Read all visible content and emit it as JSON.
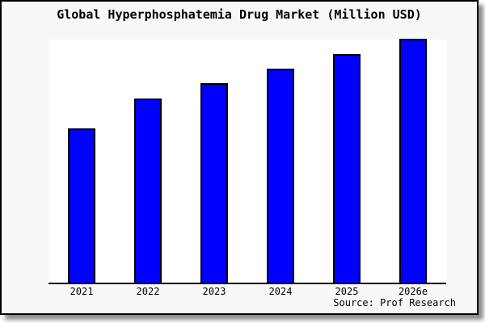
{
  "frame": {
    "background": "#f8f8f8",
    "border_color": "#000000",
    "plot_background": "#ffffff"
  },
  "chart_data": {
    "type": "bar",
    "title": "Global Hyperphosphatemia Drug Market (Million USD)",
    "categories": [
      "2021",
      "2022",
      "2023",
      "2024",
      "2025",
      "2026e"
    ],
    "values_pct_of_plot_height": [
      62.8,
      75.0,
      81.3,
      87.5,
      93.5,
      99.6
    ],
    "xlabel": "",
    "ylabel": "",
    "y_axis_labels_visible": false,
    "grid": false,
    "legend_position": "none",
    "bar_color": "#0000ff",
    "bar_border_color": "#000000",
    "source_note": "Source: Prof Research"
  }
}
